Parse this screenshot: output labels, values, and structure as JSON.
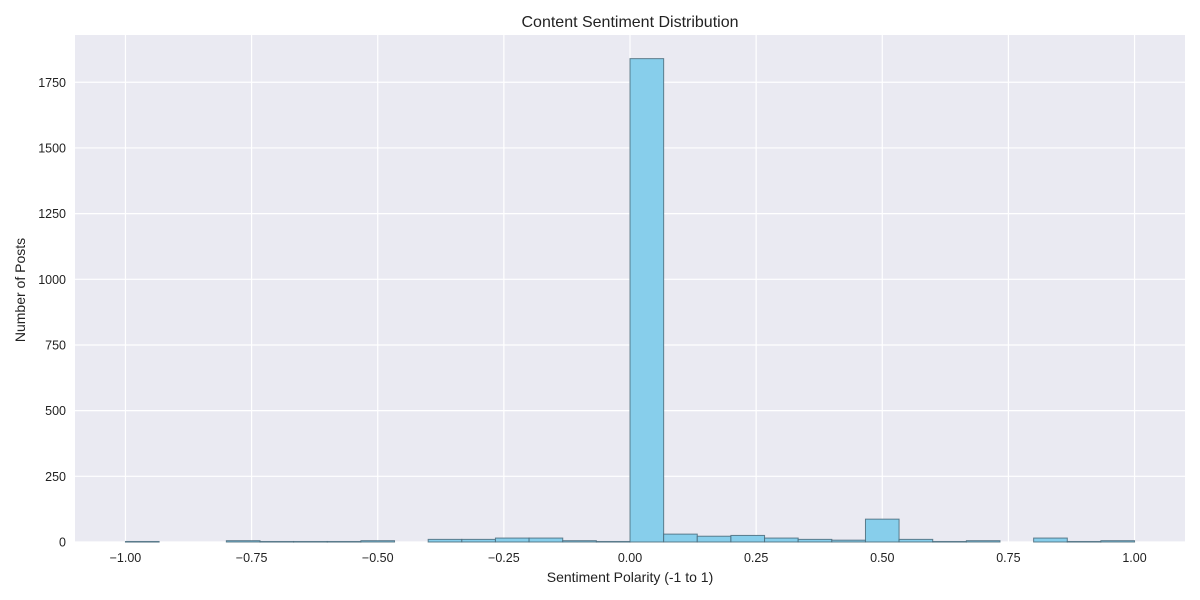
{
  "chart_data": {
    "type": "bar",
    "title": "Content Sentiment Distribution",
    "xlabel": "Sentiment Polarity (-1 to 1)",
    "ylabel": "Number of Posts",
    "xlim": [
      -1.1,
      1.1
    ],
    "ylim": [
      0,
      1930
    ],
    "x_ticks": [
      -1.0,
      -0.75,
      -0.5,
      -0.25,
      0.0,
      0.25,
      0.5,
      0.75,
      1.0
    ],
    "x_tick_labels": [
      "−1.00",
      "−0.75",
      "−0.50",
      "−0.25",
      "0.00",
      "0.25",
      "0.50",
      "0.75",
      "1.00"
    ],
    "y_ticks": [
      0,
      250,
      500,
      750,
      1000,
      1250,
      1500,
      1750
    ],
    "y_tick_labels": [
      "0",
      "250",
      "500",
      "750",
      "1000",
      "1250",
      "1500",
      "1750"
    ],
    "grid": true,
    "bin_edges": [
      -1.0,
      -0.9333,
      -0.8667,
      -0.8,
      -0.7333,
      -0.6667,
      -0.6,
      -0.5333,
      -0.4667,
      -0.4,
      -0.3333,
      -0.2667,
      -0.2,
      -0.1333,
      -0.0667,
      0.0,
      0.0667,
      0.1333,
      0.2,
      0.2667,
      0.3333,
      0.4,
      0.4667,
      0.5333,
      0.6,
      0.6667,
      0.7333,
      0.8,
      0.8667,
      0.9333,
      1.0
    ],
    "values": [
      2,
      0,
      0,
      5,
      2,
      2,
      2,
      5,
      0,
      10,
      10,
      15,
      15,
      5,
      2,
      1840,
      30,
      22,
      25,
      15,
      10,
      7,
      87,
      10,
      2,
      5,
      0,
      15,
      2,
      5
    ],
    "colors": {
      "bar": "#87ceeb",
      "edge": "#4a6a7a",
      "background": "#eaeaf2",
      "grid": "#ffffff"
    }
  }
}
